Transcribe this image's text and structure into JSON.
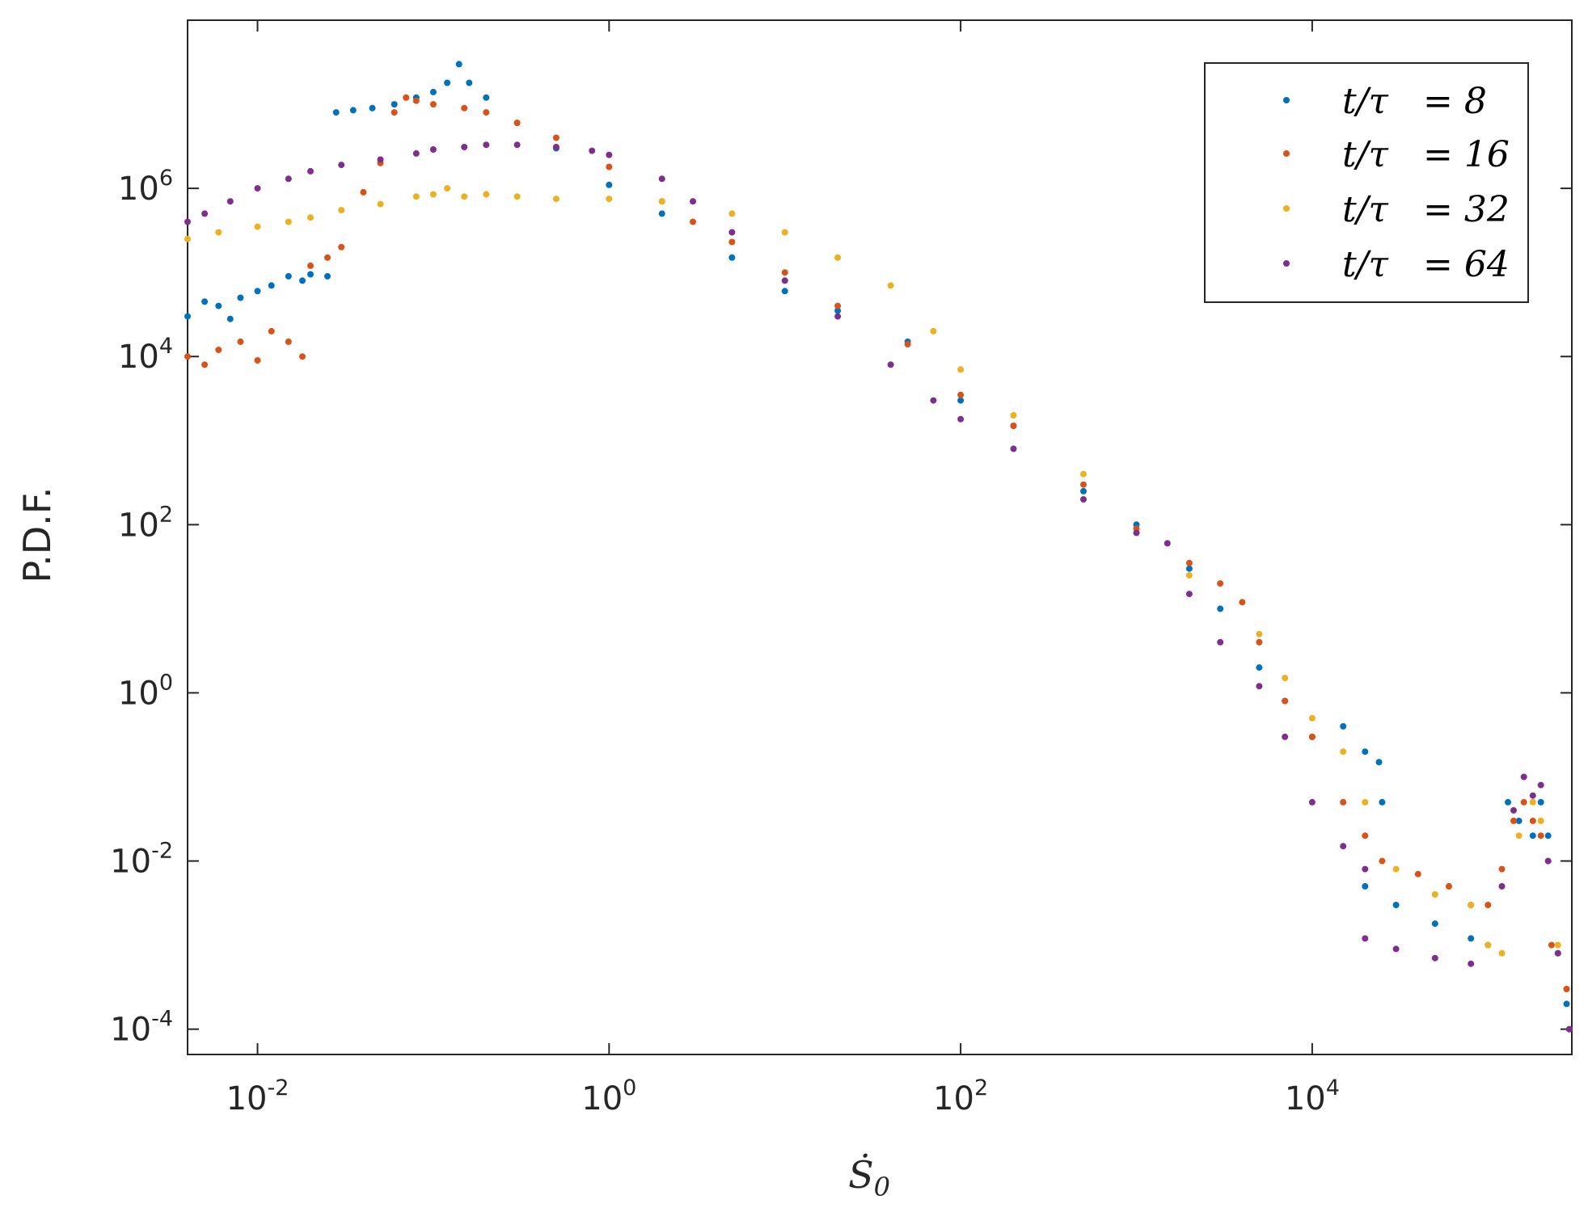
{
  "chart_data": {
    "type": "scatter",
    "xscale": "log",
    "yscale": "log",
    "xlim": [
      0.004,
      300000
    ],
    "ylim": [
      5e-05,
      100000000
    ],
    "xlabel": "Ṡ",
    "xlabel_sub": "0",
    "ylabel": "P.D.F.",
    "legend_position": "top-right",
    "xticks": [
      {
        "value": 0.01,
        "base": "10",
        "exp": "-2"
      },
      {
        "value": 1,
        "base": "10",
        "exp": "0"
      },
      {
        "value": 100,
        "base": "10",
        "exp": "2"
      },
      {
        "value": 10000,
        "base": "10",
        "exp": "4"
      }
    ],
    "yticks": [
      {
        "value": 0.0001,
        "base": "10",
        "exp": "-4"
      },
      {
        "value": 0.01,
        "base": "10",
        "exp": "-2"
      },
      {
        "value": 1,
        "base": "10",
        "exp": "0"
      },
      {
        "value": 100,
        "base": "10",
        "exp": "2"
      },
      {
        "value": 10000,
        "base": "10",
        "exp": "4"
      },
      {
        "value": 1000000,
        "base": "10",
        "exp": "6"
      }
    ],
    "series": [
      {
        "name": "t/τ = 8",
        "label_left": "t/τ",
        "label_right": "= 8",
        "color": "#0072BD",
        "points": [
          [
            0.004,
            30000
          ],
          [
            0.005,
            45000
          ],
          [
            0.006,
            40000
          ],
          [
            0.007,
            28000
          ],
          [
            0.008,
            50000
          ],
          [
            0.01,
            60000
          ],
          [
            0.012,
            70000
          ],
          [
            0.015,
            90000
          ],
          [
            0.018,
            80000
          ],
          [
            0.02,
            95000
          ],
          [
            0.025,
            90000
          ],
          [
            0.028,
            8000000
          ],
          [
            0.035,
            8500000
          ],
          [
            0.045,
            9000000
          ],
          [
            0.06,
            10000000
          ],
          [
            0.08,
            12000000
          ],
          [
            0.1,
            14000000
          ],
          [
            0.12,
            18000000
          ],
          [
            0.14,
            30000000
          ],
          [
            0.16,
            18000000
          ],
          [
            0.2,
            12000000
          ],
          [
            0.3,
            6000000
          ],
          [
            0.5,
            3000000
          ],
          [
            1,
            1100000
          ],
          [
            2,
            500000
          ],
          [
            5,
            150000
          ],
          [
            10,
            60000
          ],
          [
            20,
            35000
          ],
          [
            50,
            15000
          ],
          [
            100,
            3000
          ],
          [
            200,
            1500
          ],
          [
            500,
            250
          ],
          [
            1000,
            100
          ],
          [
            2000,
            30
          ],
          [
            3000,
            10
          ],
          [
            5000,
            2
          ],
          [
            7000,
            0.8
          ],
          [
            10000,
            0.3
          ],
          [
            15000,
            0.4
          ],
          [
            20000,
            0.2
          ],
          [
            24000,
            0.15
          ],
          [
            25000,
            0.05
          ],
          [
            20000,
            0.005
          ],
          [
            30000,
            0.003
          ],
          [
            50000,
            0.0018
          ],
          [
            80000,
            0.0012
          ],
          [
            100000,
            0.001
          ],
          [
            130000,
            0.05
          ],
          [
            150000,
            0.03
          ],
          [
            180000,
            0.02
          ],
          [
            200000,
            0.05
          ],
          [
            220000,
            0.02
          ],
          [
            250000,
            0.0008
          ],
          [
            280000,
            0.0002
          ]
        ]
      },
      {
        "name": "t/τ = 16",
        "label_left": "t/τ",
        "label_right": "= 16",
        "color": "#D95319",
        "points": [
          [
            0.004,
            10000
          ],
          [
            0.005,
            8000
          ],
          [
            0.006,
            12000
          ],
          [
            0.008,
            15000
          ],
          [
            0.01,
            9000
          ],
          [
            0.012,
            20000
          ],
          [
            0.015,
            15000
          ],
          [
            0.018,
            10000
          ],
          [
            0.02,
            120000
          ],
          [
            0.025,
            150000
          ],
          [
            0.03,
            200000
          ],
          [
            0.04,
            900000
          ],
          [
            0.05,
            2000000
          ],
          [
            0.06,
            8000000
          ],
          [
            0.07,
            12000000
          ],
          [
            0.08,
            11000000
          ],
          [
            0.1,
            10000000
          ],
          [
            0.15,
            9000000
          ],
          [
            0.2,
            8000000
          ],
          [
            0.3,
            6000000
          ],
          [
            0.5,
            4000000
          ],
          [
            1,
            1800000
          ],
          [
            2,
            700000
          ],
          [
            3,
            400000
          ],
          [
            5,
            230000
          ],
          [
            10,
            100000
          ],
          [
            20,
            40000
          ],
          [
            50,
            14000
          ],
          [
            100,
            3500
          ],
          [
            200,
            1500
          ],
          [
            500,
            300
          ],
          [
            1000,
            90
          ],
          [
            2000,
            35
          ],
          [
            3000,
            20
          ],
          [
            4000,
            12
          ],
          [
            5000,
            4
          ],
          [
            7000,
            0.8
          ],
          [
            10000,
            0.3
          ],
          [
            15000,
            0.05
          ],
          [
            20000,
            0.02
          ],
          [
            25000,
            0.01
          ],
          [
            40000,
            0.007
          ],
          [
            60000,
            0.005
          ],
          [
            80000,
            0.003
          ],
          [
            100000,
            0.003
          ],
          [
            120000,
            0.008
          ],
          [
            140000,
            0.03
          ],
          [
            160000,
            0.05
          ],
          [
            180000,
            0.03
          ],
          [
            200000,
            0.02
          ],
          [
            230000,
            0.001
          ],
          [
            280000,
            0.0003
          ]
        ]
      },
      {
        "name": "t/τ = 32",
        "label_left": "t/τ",
        "label_right": "= 32",
        "color": "#EDB120",
        "points": [
          [
            0.004,
            250000
          ],
          [
            0.006,
            300000
          ],
          [
            0.01,
            350000
          ],
          [
            0.015,
            400000
          ],
          [
            0.02,
            450000
          ],
          [
            0.03,
            550000
          ],
          [
            0.05,
            650000
          ],
          [
            0.08,
            800000
          ],
          [
            0.1,
            850000
          ],
          [
            0.12,
            1000000
          ],
          [
            0.15,
            800000
          ],
          [
            0.2,
            850000
          ],
          [
            0.3,
            800000
          ],
          [
            0.5,
            750000
          ],
          [
            1,
            750000
          ],
          [
            2,
            700000
          ],
          [
            3,
            700000
          ],
          [
            5,
            500000
          ],
          [
            10,
            300000
          ],
          [
            20,
            150000
          ],
          [
            40,
            70000
          ],
          [
            70,
            20000
          ],
          [
            100,
            7000
          ],
          [
            200,
            2000
          ],
          [
            500,
            400
          ],
          [
            1000,
            80
          ],
          [
            2000,
            25
          ],
          [
            5000,
            5
          ],
          [
            7000,
            1.5
          ],
          [
            10000,
            0.5
          ],
          [
            15000,
            0.2
          ],
          [
            20000,
            0.05
          ],
          [
            30000,
            0.008
          ],
          [
            50000,
            0.004
          ],
          [
            80000,
            0.003
          ],
          [
            100000,
            0.001
          ],
          [
            120000,
            0.0008
          ],
          [
            150000,
            0.02
          ],
          [
            180000,
            0.05
          ],
          [
            200000,
            0.03
          ],
          [
            220000,
            0.01
          ],
          [
            250000,
            0.001
          ],
          [
            290000,
            0.0001
          ]
        ]
      },
      {
        "name": "t/τ = 64",
        "label_left": "t/τ",
        "label_right": "= 64",
        "color": "#7E2F8E",
        "points": [
          [
            0.004,
            400000
          ],
          [
            0.005,
            500000
          ],
          [
            0.007,
            700000
          ],
          [
            0.01,
            1000000
          ],
          [
            0.015,
            1300000
          ],
          [
            0.02,
            1600000
          ],
          [
            0.03,
            1900000
          ],
          [
            0.05,
            2200000
          ],
          [
            0.08,
            2600000
          ],
          [
            0.1,
            2900000
          ],
          [
            0.15,
            3100000
          ],
          [
            0.2,
            3300000
          ],
          [
            0.3,
            3300000
          ],
          [
            0.5,
            3100000
          ],
          [
            0.8,
            2800000
          ],
          [
            1,
            2500000
          ],
          [
            2,
            1300000
          ],
          [
            3,
            700000
          ],
          [
            5,
            300000
          ],
          [
            10,
            80000
          ],
          [
            20,
            30000
          ],
          [
            40,
            8000
          ],
          [
            70,
            3000
          ],
          [
            100,
            1800
          ],
          [
            200,
            800
          ],
          [
            500,
            200
          ],
          [
            1000,
            80
          ],
          [
            1500,
            60
          ],
          [
            2000,
            15
          ],
          [
            3000,
            4
          ],
          [
            5000,
            1.2
          ],
          [
            7000,
            0.3
          ],
          [
            10000,
            0.05
          ],
          [
            15000,
            0.015
          ],
          [
            20000,
            0.008
          ],
          [
            20000,
            0.0012
          ],
          [
            30000,
            0.0009
          ],
          [
            50000,
            0.0007
          ],
          [
            80000,
            0.0006
          ],
          [
            120000,
            0.005
          ],
          [
            140000,
            0.04
          ],
          [
            160000,
            0.1
          ],
          [
            180000,
            0.06
          ],
          [
            200000,
            0.08
          ],
          [
            220000,
            0.01
          ],
          [
            250000,
            0.0008
          ],
          [
            290000,
            0.0001
          ]
        ]
      }
    ]
  }
}
